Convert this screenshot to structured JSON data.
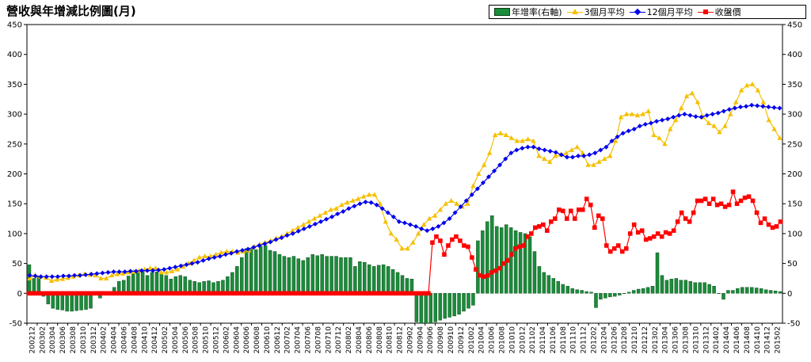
{
  "chart_data": {
    "type": "bar+line",
    "title": "營收與年增減比例圖(月)",
    "left_axis": {
      "ylim": [
        -50,
        450
      ],
      "ticks": [
        "-50",
        "0",
        "50",
        "100",
        "150",
        "200",
        "250",
        "300",
        "350",
        "400",
        "450"
      ]
    },
    "right_axis": {
      "ylim": [
        -50,
        450
      ],
      "ticks": [
        "-50",
        "0",
        "50",
        "100",
        "150",
        "200",
        "250",
        "300",
        "350",
        "400",
        "450"
      ]
    },
    "grid": false,
    "legend_position": "top-right",
    "x_labels": [
      "200212",
      "200302",
      "200304",
      "200306",
      "200308",
      "200310",
      "200312",
      "200402",
      "200404",
      "200406",
      "200408",
      "200410",
      "200412",
      "200502",
      "200504",
      "200506",
      "200508",
      "200510",
      "200512",
      "200602",
      "200604",
      "200606",
      "200608",
      "200610",
      "200612",
      "200702",
      "200704",
      "200706",
      "200708",
      "200710",
      "200712",
      "200802",
      "200804",
      "200806",
      "200808",
      "200810",
      "200812",
      "200902",
      "200904",
      "200906",
      "200908",
      "200910",
      "200912",
      "201002",
      "201004",
      "201006",
      "201008",
      "201010",
      "201012",
      "201102",
      "201104",
      "201106",
      "201108",
      "201110",
      "201112",
      "201202",
      "201204",
      "201206",
      "201208",
      "201210",
      "201212",
      "201302",
      "201304",
      "201306",
      "201308",
      "201310",
      "201312",
      "201402",
      "201404",
      "201406",
      "201408",
      "201410",
      "201412",
      "201502"
    ],
    "colors": {
      "bar": "#1a8c3a",
      "bar_edge": "#0a3d14",
      "avg3": "#f5c000",
      "avg12": "#0000ee",
      "close": "#ff0000"
    },
    "series": [
      {
        "name": "年增率(右軸)",
        "type": "bar",
        "axis": "right",
        "values": [
          48,
          25,
          28,
          -5,
          -18,
          -25,
          -27,
          -28,
          -30,
          -30,
          -29,
          -28,
          -27,
          -25,
          3,
          -8,
          -3,
          3,
          10,
          20,
          22,
          29,
          34,
          37,
          37,
          30,
          35,
          36,
          33,
          30,
          24,
          28,
          30,
          28,
          22,
          20,
          18,
          20,
          21,
          18,
          20,
          22,
          28,
          35,
          45,
          60,
          75,
          74,
          73,
          79,
          80,
          72,
          70,
          65,
          62,
          60,
          62,
          58,
          55,
          60,
          65,
          63,
          65,
          62,
          62,
          62,
          60,
          60,
          60,
          45,
          53,
          52,
          48,
          45,
          47,
          48,
          45,
          40,
          35,
          30,
          25,
          24,
          -48,
          -50,
          -50,
          -50,
          -48,
          -45,
          -42,
          -40,
          -38,
          -35,
          -30,
          -25,
          -20,
          88,
          105,
          120,
          130,
          112,
          110,
          115,
          110,
          105,
          102,
          100,
          95,
          70,
          45,
          35,
          30,
          25,
          20,
          15,
          12,
          8,
          6,
          5,
          3,
          2,
          -24,
          -10,
          -8,
          -6,
          -5,
          -3,
          0,
          2,
          5,
          7,
          8,
          10,
          12,
          68,
          30,
          22,
          24,
          25,
          22,
          22,
          20,
          18,
          18,
          18,
          15,
          12,
          0,
          -10,
          5,
          5,
          8,
          10,
          10,
          10,
          9,
          8,
          6,
          5,
          4,
          3
        ]
      },
      {
        "name": "3個月平均",
        "type": "line",
        "axis": "left",
        "values": [
          25,
          30,
          28,
          26,
          21,
          23,
          24,
          26,
          28,
          30,
          32,
          31,
          30,
          25,
          25,
          30,
          32,
          33,
          35,
          36,
          38,
          40,
          42,
          42,
          35,
          35,
          37,
          40,
          45,
          50,
          55,
          60,
          62,
          62,
          65,
          68,
          70,
          70,
          68,
          70,
          72,
          78,
          82,
          85,
          88,
          92,
          95,
          100,
          105,
          110,
          115,
          120,
          125,
          130,
          135,
          140,
          142,
          148,
          152,
          155,
          158,
          162,
          165,
          165,
          150,
          120,
          100,
          90,
          75,
          75,
          85,
          100,
          115,
          125,
          130,
          140,
          150,
          155,
          150,
          145,
          150,
          180,
          200,
          215,
          235,
          265,
          268,
          265,
          260,
          255,
          255,
          258,
          255,
          230,
          225,
          220,
          230,
          232,
          235,
          240,
          245,
          235,
          215,
          215,
          220,
          225,
          230,
          255,
          295,
          300,
          300,
          298,
          300,
          305,
          265,
          260,
          250,
          275,
          290,
          310,
          330,
          335,
          320,
          295,
          285,
          280,
          270,
          280,
          300,
          320,
          340,
          348,
          350,
          340,
          320,
          290,
          275,
          260
        ]
      },
      {
        "name": "12個月平均",
        "type": "line",
        "axis": "left",
        "values": [
          30,
          29,
          28,
          28,
          28,
          28,
          29,
          29,
          30,
          30,
          31,
          32,
          33,
          34,
          35,
          36,
          36,
          36,
          37,
          37,
          38,
          38,
          38,
          39,
          40,
          42,
          44,
          46,
          48,
          50,
          52,
          55,
          58,
          60,
          62,
          65,
          67,
          70,
          72,
          74,
          77,
          80,
          83,
          86,
          90,
          93,
          97,
          100,
          104,
          108,
          112,
          116,
          120,
          124,
          128,
          133,
          137,
          142,
          146,
          150,
          153,
          152,
          148,
          142,
          135,
          128,
          120,
          118,
          115,
          112,
          108,
          105,
          108,
          112,
          118,
          125,
          135,
          145,
          155,
          165,
          175,
          185,
          195,
          205,
          215,
          225,
          235,
          240,
          243,
          245,
          245,
          242,
          240,
          238,
          236,
          232,
          228,
          228,
          230,
          230,
          232,
          235,
          240,
          245,
          255,
          262,
          268,
          272,
          275,
          280,
          283,
          285,
          288,
          290,
          292,
          295,
          298,
          300,
          298,
          296,
          295,
          298,
          300,
          302,
          305,
          308,
          310,
          312,
          313,
          315,
          314,
          313,
          312,
          311,
          310
        ]
      },
      {
        "name": "收盤價",
        "type": "line",
        "axis": "right",
        "values": [
          0,
          0,
          0,
          0,
          0,
          0,
          0,
          0,
          0,
          0,
          0,
          0,
          0,
          0,
          0,
          0,
          0,
          0,
          0,
          0,
          0,
          0,
          0,
          0,
          0,
          0,
          0,
          0,
          0,
          0,
          0,
          0,
          0,
          0,
          0,
          0,
          0,
          0,
          0,
          0,
          0,
          0,
          0,
          0,
          0,
          0,
          0,
          0,
          0,
          0,
          0,
          0,
          0,
          0,
          0,
          0,
          0,
          0,
          0,
          0,
          0,
          0,
          0,
          0,
          0,
          0,
          0,
          0,
          0,
          0,
          0,
          0,
          0,
          0,
          0,
          0,
          0,
          0,
          0,
          0,
          0,
          0,
          0,
          0,
          0,
          0,
          0,
          0,
          0,
          0,
          0,
          0,
          0,
          0,
          0,
          0,
          0,
          0,
          0,
          0,
          0,
          0,
          85,
          95,
          88,
          65,
          80,
          90,
          95,
          88,
          80,
          78,
          60,
          40,
          30,
          28,
          30,
          35,
          38,
          42,
          50,
          55,
          65,
          75,
          78,
          80,
          95,
          100,
          110,
          112,
          115,
          105,
          120,
          125,
          140,
          138,
          125,
          138,
          125,
          140,
          140,
          158,
          148,
          110,
          130,
          125,
          80,
          70,
          75,
          80,
          70,
          75,
          100,
          115,
          102,
          105,
          90,
          92,
          95,
          100,
          95,
          102,
          100,
          105,
          120,
          135,
          125,
          120,
          135,
          155,
          155,
          158,
          150,
          158,
          148,
          150,
          145,
          148,
          170,
          150,
          155,
          160,
          162,
          155,
          135,
          118,
          125,
          115,
          110,
          112,
          120
        ]
      }
    ]
  }
}
